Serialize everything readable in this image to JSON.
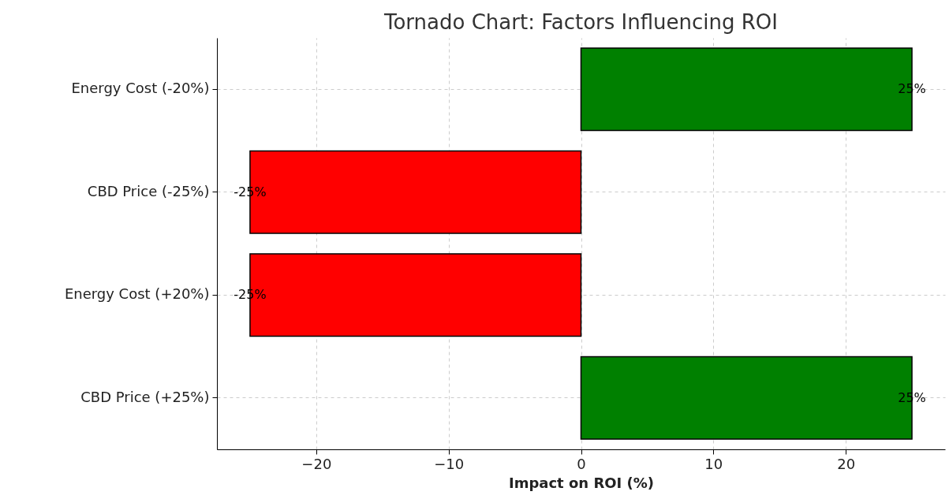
{
  "chart_data": {
    "type": "bar",
    "orientation": "horizontal",
    "title": "Tornado Chart: Factors Influencing ROI",
    "xlabel": "Impact on ROI (%)",
    "categories": [
      "Energy Cost (-20%)",
      "CBD Price (-25%)",
      "Energy Cost (+20%)",
      "CBD Price (+25%)"
    ],
    "values": [
      25,
      -25,
      -25,
      25
    ],
    "colors": [
      "#008000",
      "#ff0000",
      "#ff0000",
      "#008000"
    ],
    "value_labels": [
      "25%",
      "-25%",
      "-25%",
      "25%"
    ],
    "xlim": [
      -27.5,
      27.5
    ],
    "xticks": [
      -20,
      -10,
      0,
      10,
      20
    ],
    "grid": true
  }
}
